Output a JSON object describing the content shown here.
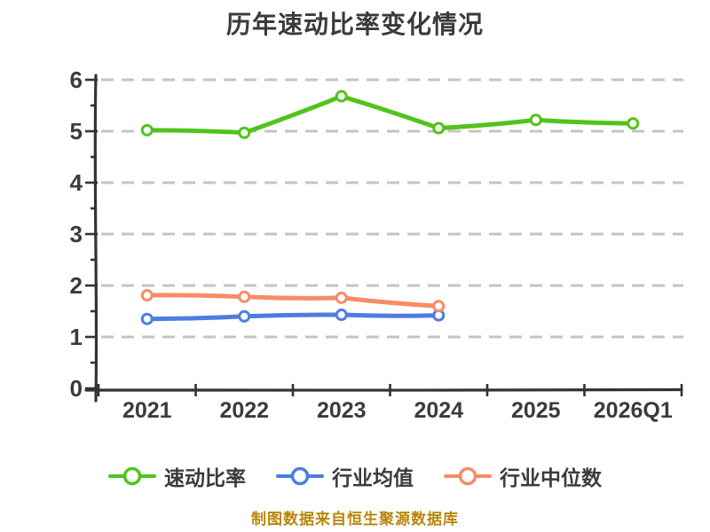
{
  "chart_data": {
    "type": "line",
    "title": "历年速动比率变化情况",
    "categories": [
      "2021",
      "2022",
      "2023",
      "2024",
      "2025",
      "2026Q1"
    ],
    "series": [
      {
        "name": "速动比率",
        "color": "#52c31b",
        "values": [
          5.02,
          4.97,
          5.68,
          5.06,
          5.22,
          5.15
        ]
      },
      {
        "name": "行业均值",
        "color": "#4d7de2",
        "values": [
          1.35,
          1.4,
          1.43,
          1.42
        ]
      },
      {
        "name": "行业中位数",
        "color": "#f88b66",
        "values": [
          1.81,
          1.78,
          1.76,
          1.6
        ]
      }
    ],
    "ylim": [
      0,
      6
    ],
    "yticks": [
      0,
      1,
      2,
      3,
      4,
      5,
      6
    ],
    "minor_ytick_step": 0.5,
    "grid": "horizontal-dashed",
    "gridline_color": "#c4c4c4",
    "axis_color": "#333333",
    "text_color": "#3b3b3b",
    "marker_style": "open-circle",
    "legend_position": "bottom"
  },
  "footer": {
    "text": "制图数据来自恒生聚源数据库",
    "color": "#b8860b"
  }
}
